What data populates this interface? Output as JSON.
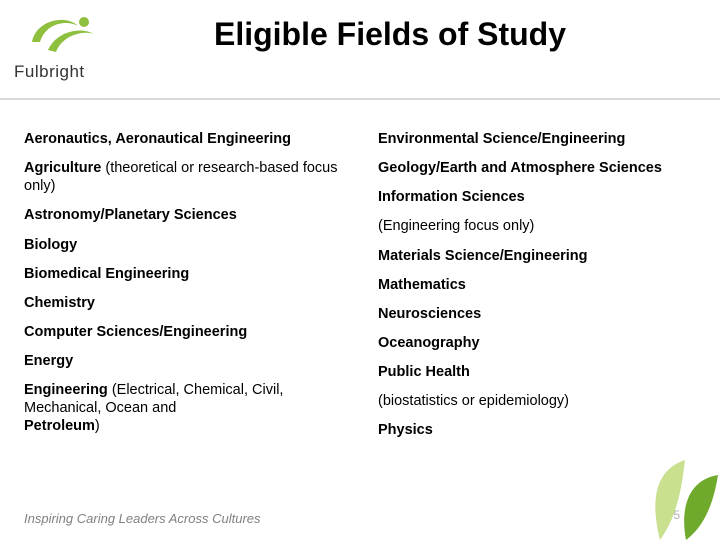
{
  "brand": {
    "wordmark": "Fulbright",
    "swoosh_color": "#8fbf3f",
    "text_color": "#333333"
  },
  "title": "Eligible Fields of Study",
  "left_column": [
    {
      "main": "Aeronautics, Aeronautical Engineering",
      "sub": ""
    },
    {
      "main": "Agriculture ",
      "sub": "(theoretical or research-based focus only)"
    },
    {
      "main": "Astronomy/Planetary Sciences",
      "sub": ""
    },
    {
      "main": "Biology",
      "sub": ""
    },
    {
      "main": "Biomedical Engineering",
      "sub": ""
    },
    {
      "main": "Chemistry",
      "sub": ""
    },
    {
      "main": "Computer Sciences/Engineering",
      "sub": ""
    },
    {
      "main": "Energy",
      "sub": ""
    },
    {
      "main": "Engineering ",
      "sub": "(Electrical, Chemical, Civil, Mechanical, Ocean and",
      "main2": "Petroleum",
      "sub2": ")"
    }
  ],
  "right_column": [
    {
      "main": "Environmental Science/Engineering",
      "sub": ""
    },
    {
      "main": "Geology/Earth and Atmosphere Sciences",
      "sub": ""
    },
    {
      "main": "Information Sciences",
      "sub": ""
    },
    {
      "sub": "(Engineering focus only)",
      "main": ""
    },
    {
      "main": "Materials Science/Engineering",
      "sub": ""
    },
    {
      "main": "Mathematics",
      "sub": ""
    },
    {
      "main": "Neurosciences",
      "sub": ""
    },
    {
      "main": "Oceanography",
      "sub": ""
    },
    {
      "main": "Public Health",
      "sub": ""
    },
    {
      "sub": "(biostatistics or epidemiology)",
      "main": ""
    },
    {
      "main": "Physics",
      "sub": ""
    }
  ],
  "tagline": "Inspiring Caring Leaders Across Cultures",
  "page_number": "45",
  "leaf_colors": [
    "#c9e08f",
    "#6faa2d"
  ]
}
